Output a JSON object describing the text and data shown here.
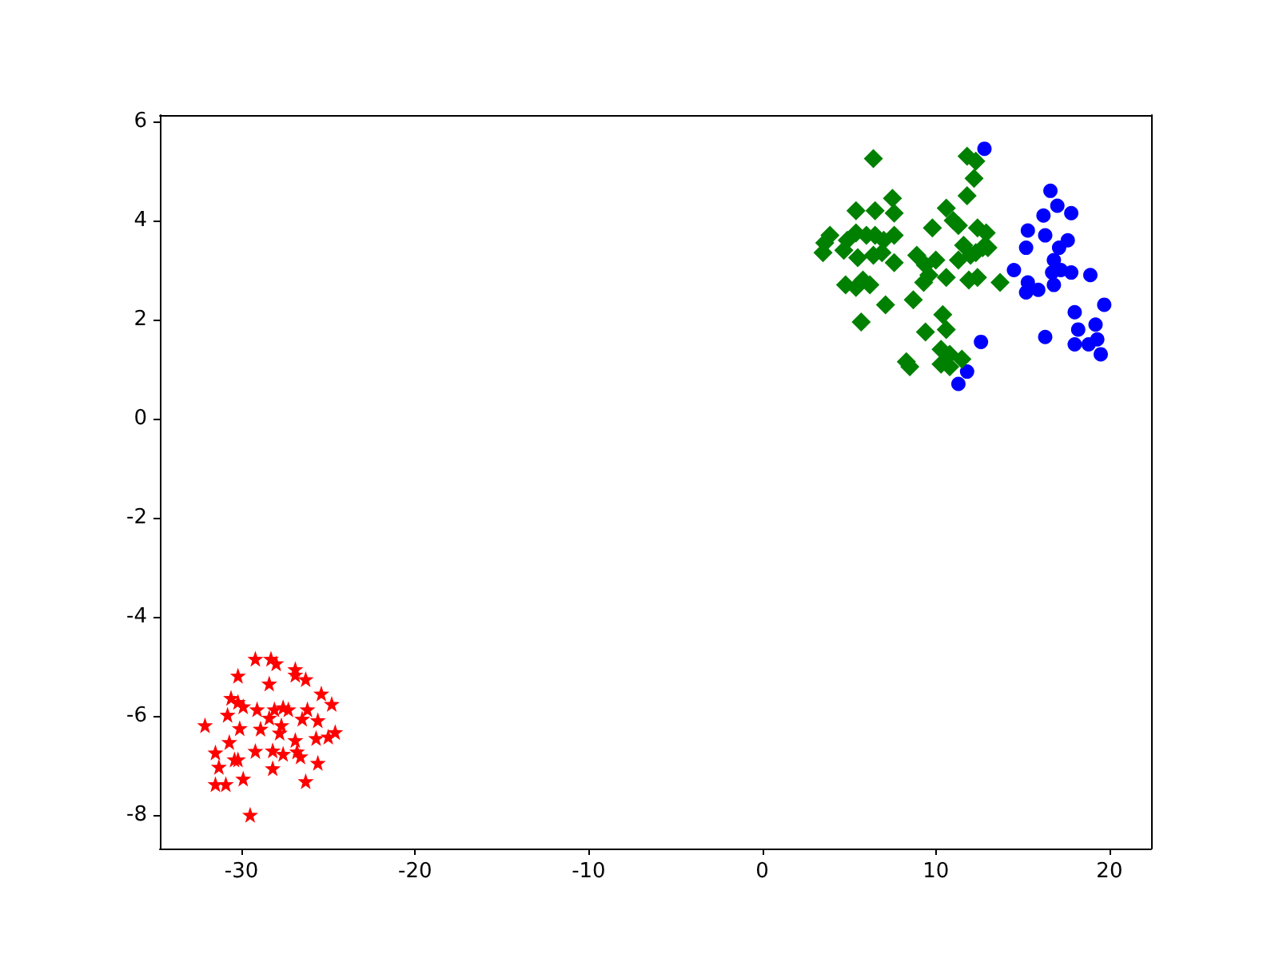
{
  "chart_data": {
    "type": "scatter",
    "xlim": [
      -34.7,
      22.4
    ],
    "ylim": [
      -8.68,
      6.13
    ],
    "xticks": [
      -30,
      -20,
      -10,
      0,
      10,
      20
    ],
    "yticks": [
      -8,
      -6,
      -4,
      -2,
      0,
      2,
      4,
      6
    ],
    "grid": false,
    "series": [
      {
        "color": "#0000ff",
        "marker": "circle",
        "x": [
          12.8,
          16.6,
          17.0,
          17.8,
          16.2,
          15.3,
          16.3,
          17.6,
          15.2,
          17.1,
          16.8,
          14.5,
          16.7,
          17.2,
          17.8,
          18.9,
          15.3,
          15.9,
          15.2,
          16.8,
          19.7,
          18.0,
          18.2,
          19.2,
          16.3,
          18.0,
          18.8,
          19.3,
          19.5,
          12.6,
          11.8,
          11.3
        ],
        "values": [
          5.45,
          4.6,
          4.3,
          4.15,
          4.1,
          3.8,
          3.7,
          3.6,
          3.45,
          3.45,
          3.2,
          3.0,
          2.95,
          3.0,
          2.95,
          2.9,
          2.75,
          2.6,
          2.55,
          2.7,
          2.3,
          2.15,
          1.8,
          1.9,
          1.65,
          1.5,
          1.5,
          1.6,
          1.3,
          1.55,
          0.95,
          0.7
        ]
      },
      {
        "color": "#008000",
        "marker": "diamond",
        "x": [
          6.4,
          11.8,
          12.3,
          12.2,
          11.8,
          7.5,
          5.4,
          6.5,
          7.6,
          10.6,
          11.0,
          11.3,
          9.8,
          12.4,
          12.9,
          3.9,
          5.4,
          6.0,
          6.5,
          7.0,
          3.6,
          4.9,
          7.6,
          11.6,
          12.7,
          13.0,
          3.5,
          4.7,
          5.5,
          6.4,
          6.9,
          7.6,
          8.9,
          9.4,
          10.0,
          11.3,
          12.0,
          12.3,
          9.6,
          10.6,
          11.9,
          12.4,
          13.7,
          5.8,
          6.2,
          4.8,
          5.4,
          9.3,
          7.1,
          8.7,
          5.7,
          9.4,
          10.4,
          10.6,
          8.3,
          8.5,
          10.3,
          10.8,
          11.5,
          10.3,
          10.8
        ],
        "values": [
          5.25,
          5.3,
          5.2,
          4.85,
          4.5,
          4.45,
          4.2,
          4.2,
          4.15,
          4.25,
          4.0,
          3.9,
          3.85,
          3.85,
          3.75,
          3.7,
          3.75,
          3.7,
          3.7,
          3.6,
          3.55,
          3.6,
          3.7,
          3.5,
          3.45,
          3.45,
          3.35,
          3.4,
          3.25,
          3.3,
          3.35,
          3.15,
          3.3,
          3.1,
          3.2,
          3.2,
          3.3,
          3.35,
          2.9,
          2.85,
          2.8,
          2.85,
          2.75,
          2.8,
          2.7,
          2.7,
          2.65,
          2.75,
          2.3,
          2.4,
          1.95,
          1.75,
          2.1,
          1.8,
          1.15,
          1.05,
          1.4,
          1.3,
          1.2,
          1.1,
          1.05
        ]
      },
      {
        "color": "#ff0000",
        "marker": "star",
        "x": [
          -29.2,
          -28.3,
          -28.0,
          -30.2,
          -26.9,
          -26.9,
          -26.3,
          -28.4,
          -25.4,
          -30.6,
          -30.2,
          -29.9,
          -24.8,
          -29.1,
          -28.1,
          -27.6,
          -27.3,
          -26.2,
          -30.8,
          -28.4,
          -26.5,
          -25.6,
          -32.1,
          -30.1,
          -28.9,
          -27.7,
          -27.8,
          -25.7,
          -25.0,
          -24.6,
          -26.9,
          -30.7,
          -31.5,
          -29.2,
          -28.2,
          -27.6,
          -26.8,
          -26.6,
          -30.4,
          -30.2,
          -31.3,
          -28.2,
          -25.6,
          -29.9,
          -31.5,
          -30.9,
          -26.3,
          -29.5
        ],
        "values": [
          -4.85,
          -4.85,
          -4.94,
          -5.19,
          -5.06,
          -5.17,
          -5.26,
          -5.35,
          -5.55,
          -5.64,
          -5.72,
          -5.81,
          -5.76,
          -5.87,
          -5.87,
          -5.83,
          -5.87,
          -5.87,
          -5.98,
          -6.04,
          -6.06,
          -6.09,
          -6.19,
          -6.25,
          -6.26,
          -6.19,
          -6.34,
          -6.45,
          -6.42,
          -6.33,
          -6.49,
          -6.53,
          -6.74,
          -6.71,
          -6.7,
          -6.77,
          -6.72,
          -6.82,
          -6.88,
          -6.88,
          -7.03,
          -7.06,
          -6.95,
          -7.27,
          -7.38,
          -7.38,
          -7.32,
          -8.0
        ]
      }
    ]
  }
}
